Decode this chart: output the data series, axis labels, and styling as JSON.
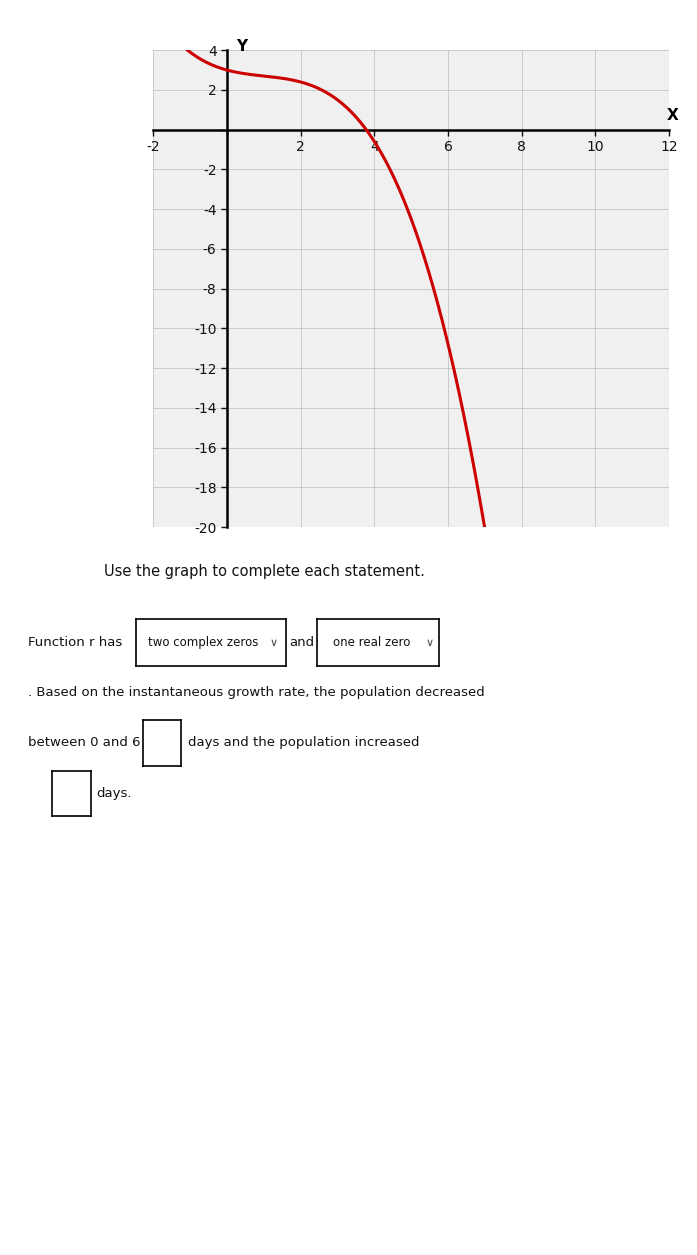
{
  "x_min": -2,
  "x_max": 12,
  "y_min": -20,
  "y_max": 4,
  "x_tick_step": 2,
  "y_tick_step": 2,
  "curve_color": "#cc0000",
  "curve_linewidth": 2.2,
  "grid_color": "#bbbbbb",
  "grid_bg": "#f0f0f0",
  "axis_color": "#000000",
  "text_color": "#111111",
  "instruction_text": "Use the graph to complete each statement.",
  "paper_color": "#ffffff",
  "page_bg": "#c8c8c8",
  "graph_bg": "#e8e8e8",
  "box1_text": "two complex zeros",
  "box2_text": "one real zero",
  "line1a": "Function r has",
  "line1b": "and",
  "line1c": ". Based on the instantaneous growth rate, the population decreased",
  "line2": "between 0 and 6",
  "line2b": "days and the population increased",
  "line3": "days.",
  "curve_a": -0.1,
  "curve_b": 0.3,
  "curve_c": -0.5,
  "curve_d": 3.0,
  "figwidth": 6.97,
  "figheight": 12.55,
  "dpi": 100
}
